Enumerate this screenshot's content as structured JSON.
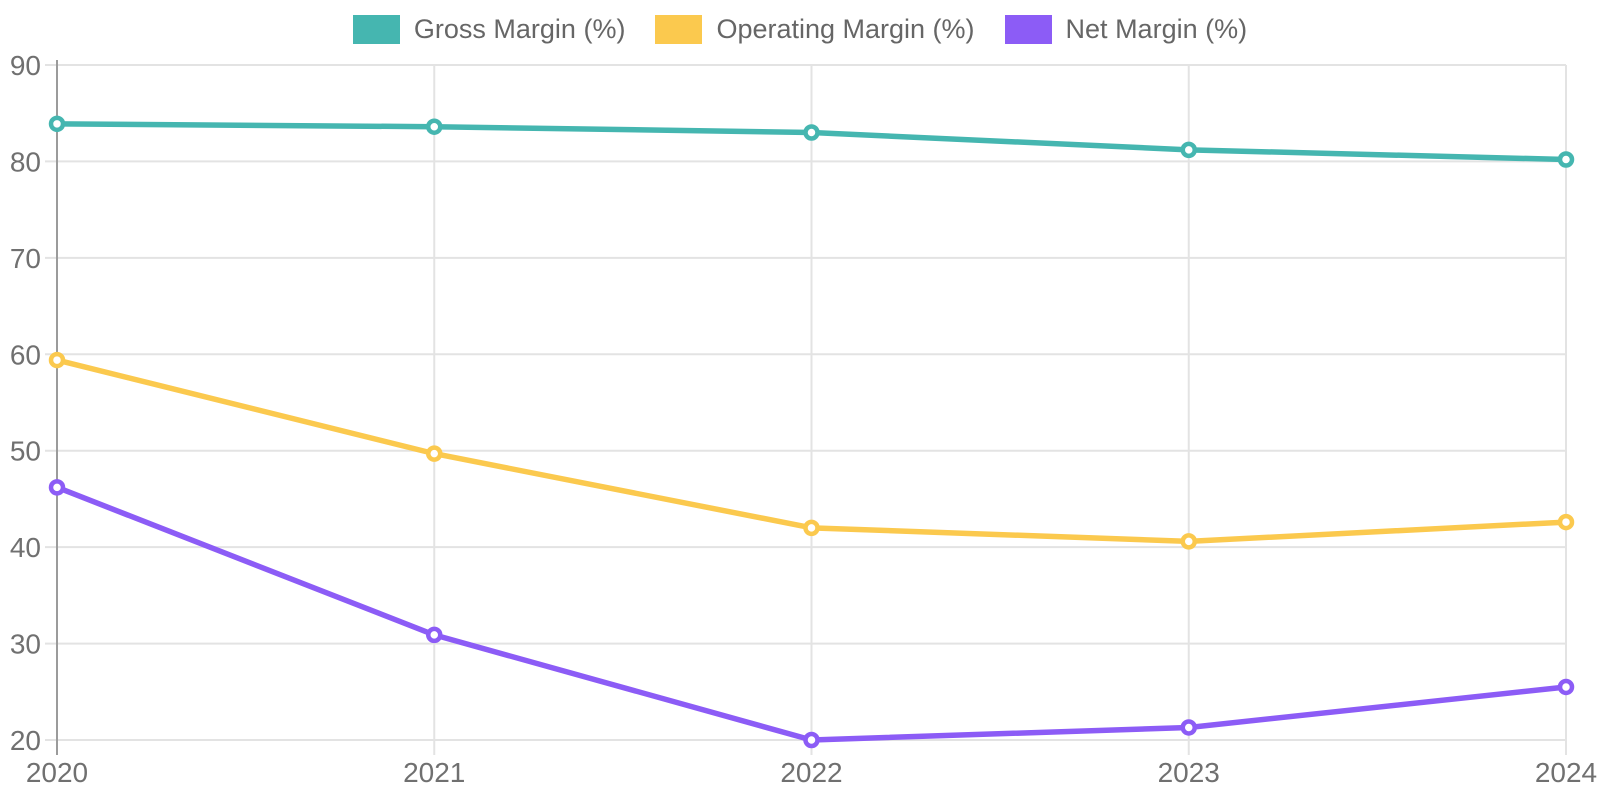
{
  "colors": {
    "background": "#FFFFFF",
    "gridline": "#E3E3E3",
    "axis_line": "#9B9B9B",
    "tick_text": "#707070",
    "legend_text": "#666666"
  },
  "chart_data": {
    "type": "line",
    "title": "",
    "xlabel": "",
    "ylabel": "",
    "x": [
      "2020",
      "2021",
      "2022",
      "2023",
      "2024"
    ],
    "series": [
      {
        "name": "Gross Margin (%)",
        "color": "#45B6B0",
        "values": [
          83.9,
          83.6,
          83.0,
          81.2,
          80.2
        ]
      },
      {
        "name": "Operating Margin (%)",
        "color": "#FBC94E",
        "values": [
          59.4,
          49.7,
          42.0,
          40.6,
          42.6
        ]
      },
      {
        "name": "Net Margin (%)",
        "color": "#8C5CF6",
        "values": [
          46.2,
          30.9,
          20.0,
          21.3,
          25.5
        ]
      }
    ],
    "ylim": [
      20,
      90
    ],
    "yticks": [
      20,
      30,
      40,
      50,
      60,
      70,
      80,
      90
    ],
    "grid": true,
    "legend_position": "top-center",
    "marker_style": "circle-white-core"
  }
}
